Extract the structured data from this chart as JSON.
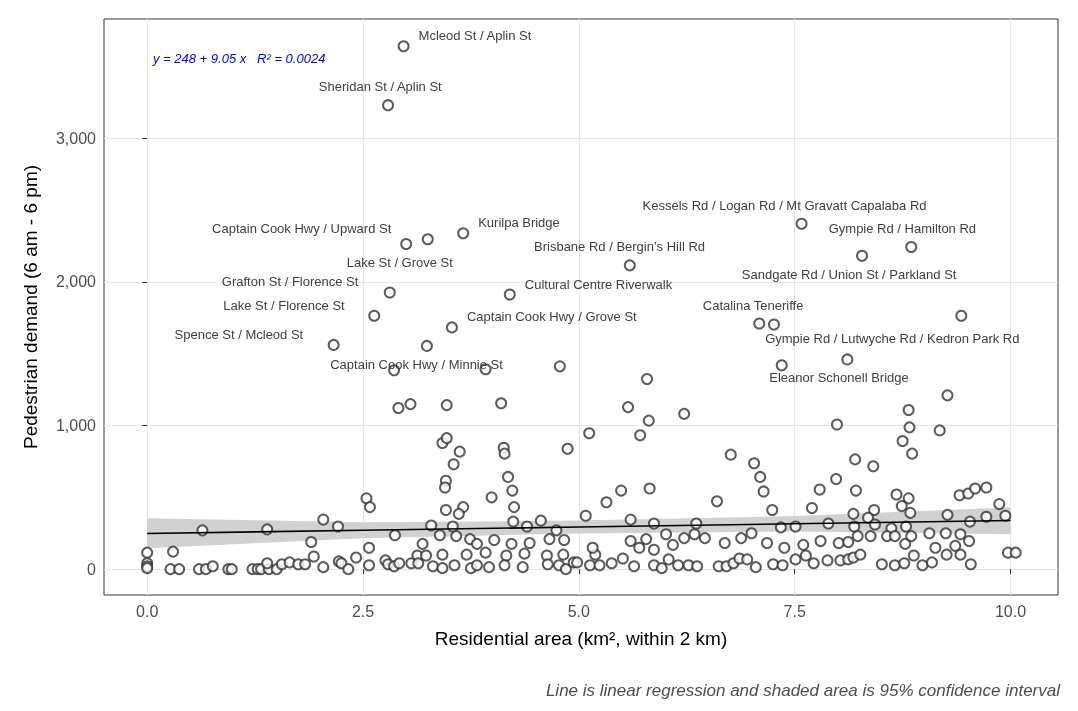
{
  "chart_data": {
    "type": "scatter",
    "xlabel": "Residential area (km², within 2 km)",
    "ylabel": "Pedestrian demand (6 am - 6 pm)",
    "xlim": [
      -0.5,
      10.55
    ],
    "ylim": [
      -180,
      3830
    ],
    "xticks": [
      {
        "value": 0,
        "label": "0.0"
      },
      {
        "value": 2.5,
        "label": "2.5"
      },
      {
        "value": 5,
        "label": "5.0"
      },
      {
        "value": 7.5,
        "label": "7.5"
      },
      {
        "value": 10,
        "label": "10.0"
      }
    ],
    "yticks": [
      0,
      {
        "value": 1000,
        "label": "1,000"
      },
      {
        "value": 2000,
        "label": "2,000"
      },
      {
        "value": 3000,
        "label": "3,000"
      }
    ],
    "grid": true,
    "series": [
      {
        "color": "#333333",
        "marker": "circle",
        "x": [
          2.97,
          2.79,
          7.58,
          8.85,
          3.25,
          3.66,
          3.0,
          5.59,
          8.28,
          2.81,
          4.2,
          2.63,
          3.53,
          3.24,
          2.16,
          7.09,
          7.26,
          9.43,
          8.11,
          7.35,
          5.79,
          4.78,
          3.92,
          2.86,
          9.27,
          2.91,
          3.05,
          3.47,
          4.1,
          3.42,
          3.47,
          3.62,
          3.55,
          3.46,
          3.45,
          4.13,
          4.14,
          4.18,
          4.23,
          4.25,
          4.87,
          3.99,
          2.54,
          2.58,
          3.46,
          3.66,
          3.61,
          2.04,
          2.21,
          1.39,
          0.64,
          4.56,
          4.4,
          4.24,
          3.29,
          3.54,
          4.74,
          1.9,
          2.87,
          3.39,
          3.58,
          3.74,
          3.82,
          3.19,
          4.02,
          4.22,
          4.43,
          4.66,
          4.83,
          2.57,
          0.3,
          0,
          1.93,
          2.42,
          3.13,
          3.42,
          3.7,
          3.92,
          4.16,
          4.37,
          4.63,
          4.82,
          0,
          0,
          0,
          0.27,
          0.37,
          0.6,
          0.68,
          0.76,
          0.94,
          0.98,
          1.22,
          1.28,
          1.32,
          1.41,
          1.5,
          1.39,
          1.56,
          1.65,
          1.75,
          1.83,
          2.04,
          2.22,
          2.25,
          2.33,
          2.57,
          2.76,
          2.79,
          2.86,
          2.92,
          3.06,
          3.14,
          3.23,
          3.31,
          3.42,
          3.56,
          3.75,
          3.82,
          3.96,
          4.14,
          4.35,
          4.64,
          4.77,
          4.94,
          5.57,
          5.81,
          5.71,
          5.12,
          6.22,
          7.99,
          8.82,
          8.83,
          8.75,
          8.86,
          9.18,
          6.76,
          7.03,
          7.1,
          7.14,
          7.24,
          8.2,
          8.41,
          7.98,
          7.79,
          8.21,
          8.68,
          8.82,
          8.74,
          8.84,
          8.42,
          8.18,
          8.35,
          7.7,
          9.41,
          9.51,
          9.59,
          9.72,
          9.87,
          9.94,
          9.72,
          9.27,
          9.53,
          5.49,
          5.82,
          5.32,
          5.08,
          6.6,
          5.6,
          5.87,
          6.36,
          7.34,
          7.51,
          7.89,
          8.19,
          8.43,
          8.62,
          8.79,
          5.6,
          5.78,
          6.01,
          6.22,
          6.34,
          6.46,
          6.69,
          6.88,
          7.0,
          7.18,
          7.38,
          7.6,
          7.8,
          8.01,
          8.12,
          8.23,
          8.38,
          8.57,
          8.66,
          8.78,
          8.85,
          9.06,
          9.25,
          9.42,
          9.52,
          9.36,
          9.13,
          6.09,
          5.87,
          5.7,
          5.19,
          5.16,
          4.85,
          4.98,
          5.13,
          5.24,
          5.38,
          5.51,
          5.64,
          5.87,
          5.96,
          6.04,
          6.15,
          6.27,
          6.37,
          6.62,
          6.71,
          6.79,
          6.86,
          6.95,
          7.05,
          7.25,
          7.36,
          7.51,
          7.63,
          7.72,
          7.88,
          8.03,
          8.12,
          8.18,
          8.26,
          8.51,
          8.66,
          8.77,
          8.88,
          8.98,
          9.09,
          9.26,
          9.42,
          9.54,
          9.97,
          10.06
        ],
        "values": [
          3640,
          3230,
          2405,
          2243,
          2297,
          2338,
          2264,
          2115,
          2182,
          1926,
          1912,
          1764,
          1683,
          1554,
          1561,
          1710,
          1703,
          1764,
          1460,
          1419,
          1324,
          1412,
          1392,
          1385,
          1210,
          1122,
          1149,
          1142,
          1155,
          878,
          912,
          818,
          730,
          615,
          568,
          845,
          804,
          642,
          547,
          432,
          838,
          500,
          493,
          432,
          412,
          432,
          385,
          345,
          297,
          277,
          270,
          338,
          297,
          331,
          304,
          297,
          270,
          189,
          236,
          236,
          230,
          209,
          176,
          176,
          203,
          176,
          182,
          209,
          203,
          149,
          122,
          115,
          88,
          81,
          95,
          101,
          101,
          115,
          95,
          108,
          95,
          101,
          41,
          20,
          7,
          0,
          0,
          0,
          0,
          20,
          0,
          0,
          0,
          0,
          0,
          0,
          0,
          41,
          34,
          47,
          34,
          34,
          14,
          54,
          41,
          0,
          27,
          61,
          34,
          20,
          41,
          41,
          41,
          95,
          20,
          7,
          27,
          7,
          27,
          14,
          27,
          14,
          34,
          27,
          47,
          1128,
          1034,
          932,
          946,
          1081,
          1007,
          1108,
          987,
          892,
          804,
          966,
          797,
          737,
          642,
          541,
          412,
          764,
          716,
          628,
          554,
          547,
          520,
          493,
          439,
          392,
          412,
          385,
          358,
          426,
          514,
          527,
          561,
          568,
          453,
          372,
          365,
          378,
          331,
          547,
          561,
          466,
          372,
          473,
          345,
          318,
          318,
          291,
          297,
          318,
          297,
          311,
          284,
          297,
          196,
          209,
          243,
          216,
          243,
          216,
          182,
          216,
          250,
          182,
          149,
          169,
          196,
          182,
          189,
          230,
          230,
          230,
          230,
          176,
          230,
          250,
          250,
          243,
          196,
          162,
          149,
          169,
          135,
          149,
          101,
          149,
          0,
          47,
          27,
          27,
          41,
          74,
          20,
          27,
          7,
          68,
          27,
          27,
          20,
          20,
          20,
          41,
          74,
          68,
          14,
          34,
          27,
          68,
          95,
          41,
          61,
          61,
          68,
          81,
          101,
          34,
          27,
          41,
          95,
          27,
          47,
          101,
          101,
          34,
          115,
          115
        ]
      },
      {
        "type": "line",
        "color": "#000000",
        "marker": "none",
        "line_style": "solid",
        "x": [
          0,
          2.5,
          5,
          7.5,
          10
        ],
        "values": [
          248,
          271,
          293,
          316,
          339
        ],
        "lower": [
          145,
          215,
          248,
          262,
          243
        ],
        "upper": [
          355,
          326,
          338,
          370,
          430
        ]
      }
    ],
    "annotations": [
      "y = 248 + 9.05 x   R² = 0.0024",
      "Line is linear regression and shaded area is 95% confidence interval",
      {
        "text": "Mcleod St / Aplin St",
        "x": 2.97,
        "y": 3640
      },
      {
        "text": "Sheridan St / Aplin St",
        "x": 2.79,
        "y": 3230
      },
      {
        "text": "Kessels Rd / Logan Rd / Mt Gravatt Capalaba Rd",
        "x": 7.58,
        "y": 2405
      },
      {
        "text": "Gympie Rd / Hamilton Rd",
        "x": 8.85,
        "y": 2243
      },
      {
        "text": "Captain Cook Hwy / Upward St",
        "x": 3.25,
        "y": 2297
      },
      {
        "text": "Kurilpa Bridge",
        "x": 3.66,
        "y": 2338
      },
      {
        "text": "Lake St / Grove St",
        "x": 3.0,
        "y": 2264
      },
      {
        "text": "Brisbane Rd / Bergin’s Hill Rd",
        "x": 5.59,
        "y": 2115
      },
      {
        "text": "Sandgate Rd / Union St / Parkland St",
        "x": 8.28,
        "y": 2182
      },
      {
        "text": "Grafton St / Florence St",
        "x": 2.81,
        "y": 1926
      },
      {
        "text": "Cultural Centre Riverwalk",
        "x": 4.2,
        "y": 1912
      },
      {
        "text": "Captain Cook Hwy / Grove St",
        "x": 3.53,
        "y": 1683
      },
      {
        "text": "Lake St / Florence St",
        "x": 2.63,
        "y": 1764
      },
      {
        "text": "Spence St / Mcleod St",
        "x": 2.16,
        "y": 1561
      },
      {
        "text": "Captain Cook Hwy / Minnie St",
        "x": 3.24,
        "y": 1554
      },
      {
        "text": "Catalina Teneriffe",
        "x": 7.09,
        "y": 1710
      },
      {
        "text": "Gympie Rd / Lutwyche Rd / Kedron Park Rd",
        "x": 9.43,
        "y": 1764
      },
      {
        "text": "Eleanor Schonell Bridge",
        "x": 8.11,
        "y": 1460
      }
    ]
  }
}
